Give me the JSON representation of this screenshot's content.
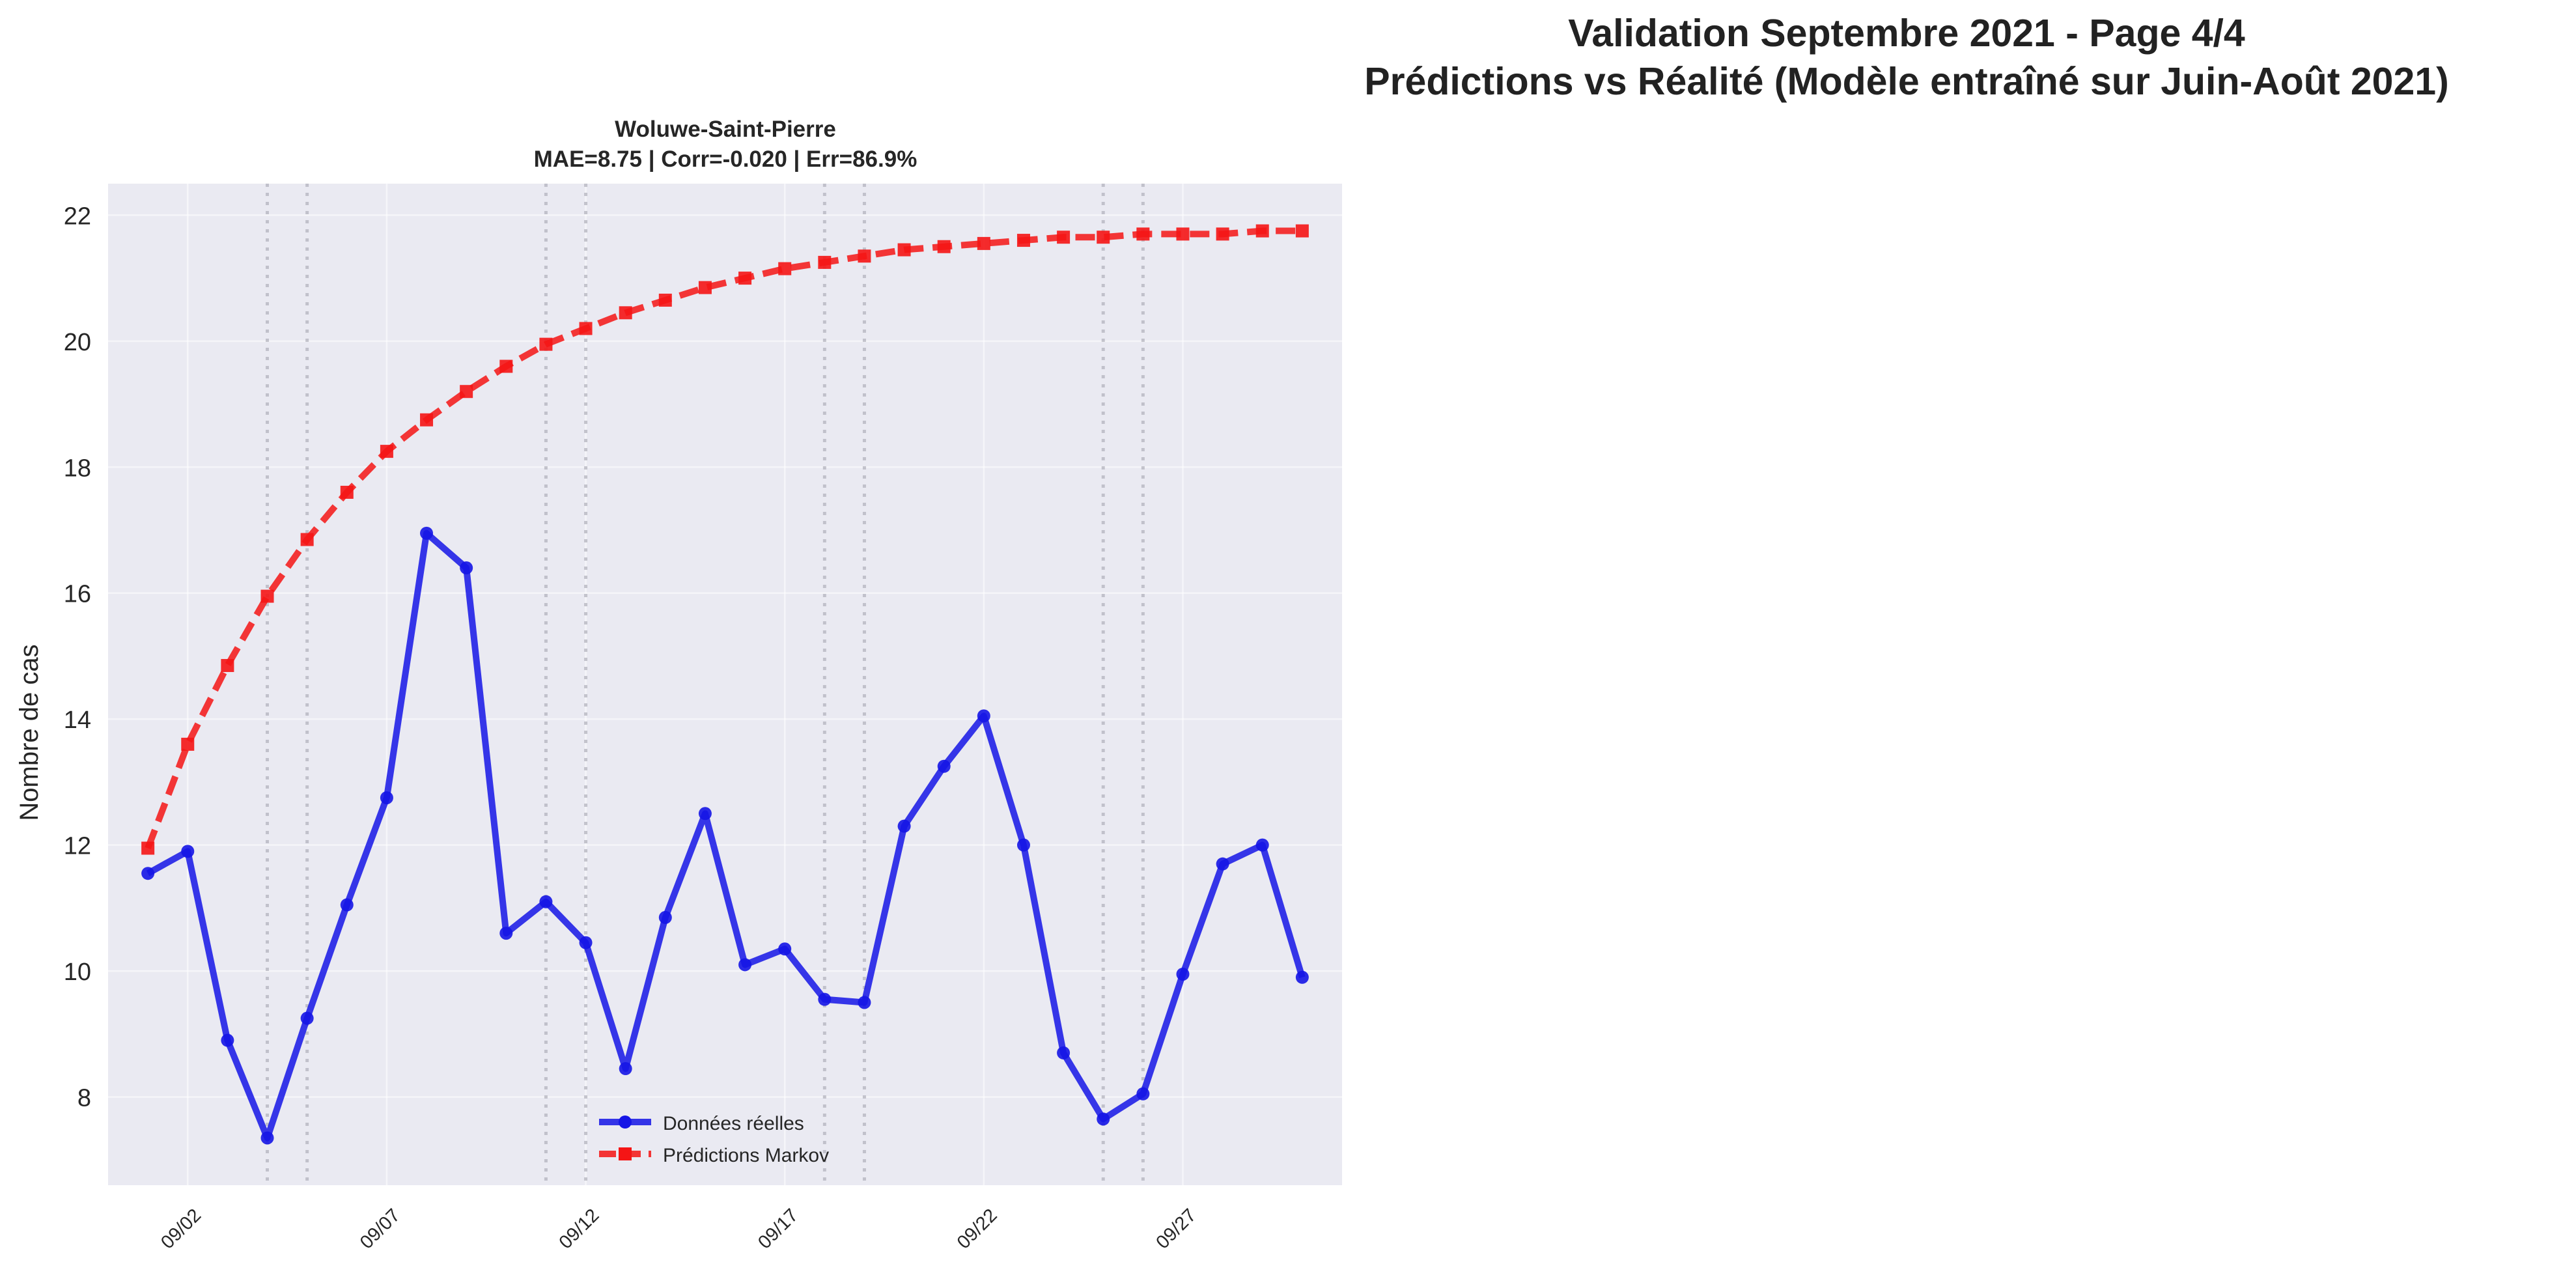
{
  "figure": {
    "suptitle_line1": "Validation Septembre 2021 - Page 4/4",
    "suptitle_line2": "Prédictions vs Réalité (Modèle entraîné sur Juin-Août 2021)"
  },
  "chart_data": {
    "type": "line",
    "title": "Woluwe-Saint-Pierre",
    "subtitle": "MAE=8.75 | Corr=-0.020 | Err=86.9%",
    "xlabel": "",
    "ylabel": "Nombre de cas",
    "x": [
      "2021-09-01",
      "2021-09-02",
      "2021-09-03",
      "2021-09-04",
      "2021-09-05",
      "2021-09-06",
      "2021-09-07",
      "2021-09-08",
      "2021-09-09",
      "2021-09-10",
      "2021-09-11",
      "2021-09-12",
      "2021-09-13",
      "2021-09-14",
      "2021-09-15",
      "2021-09-16",
      "2021-09-17",
      "2021-09-18",
      "2021-09-19",
      "2021-09-20",
      "2021-09-21",
      "2021-09-22",
      "2021-09-23",
      "2021-09-24",
      "2021-09-25",
      "2021-09-26",
      "2021-09-27",
      "2021-09-28",
      "2021-09-29",
      "2021-09-30"
    ],
    "xticks": [
      "09/02",
      "09/07",
      "09/12",
      "09/17",
      "09/22",
      "09/27"
    ],
    "yticks": [
      8,
      10,
      12,
      14,
      16,
      18,
      20,
      22
    ],
    "xlim": [
      "2021-08-31",
      "2021-10-01"
    ],
    "ylim": [
      6.6,
      22.5
    ],
    "grid": true,
    "weekend_markers": [
      "2021-09-04",
      "2021-09-05",
      "2021-09-11",
      "2021-09-12",
      "2021-09-18",
      "2021-09-19",
      "2021-09-25",
      "2021-09-26"
    ],
    "legend_position": "bottom-center",
    "series": [
      {
        "name": "Données réelles",
        "color": "#1515e6",
        "style": "solid",
        "marker": "circle",
        "values": [
          11.55,
          11.9,
          8.9,
          7.35,
          9.25,
          11.05,
          12.75,
          16.95,
          16.4,
          10.6,
          11.1,
          10.45,
          8.45,
          10.85,
          12.5,
          10.1,
          10.35,
          9.55,
          9.5,
          12.3,
          13.25,
          14.05,
          12.0,
          8.7,
          7.65,
          8.05,
          9.95,
          11.7,
          12.0,
          9.9
        ]
      },
      {
        "name": "Prédictions Markov",
        "color": "#f51515",
        "style": "dashed",
        "marker": "square",
        "values": [
          11.95,
          13.6,
          14.85,
          15.95,
          16.85,
          17.6,
          18.25,
          18.75,
          19.2,
          19.6,
          19.95,
          20.2,
          20.45,
          20.65,
          20.85,
          21.0,
          21.15,
          21.25,
          21.35,
          21.45,
          21.5,
          21.55,
          21.6,
          21.65,
          21.65,
          21.7,
          21.7,
          21.7,
          21.75,
          21.75
        ]
      }
    ]
  }
}
